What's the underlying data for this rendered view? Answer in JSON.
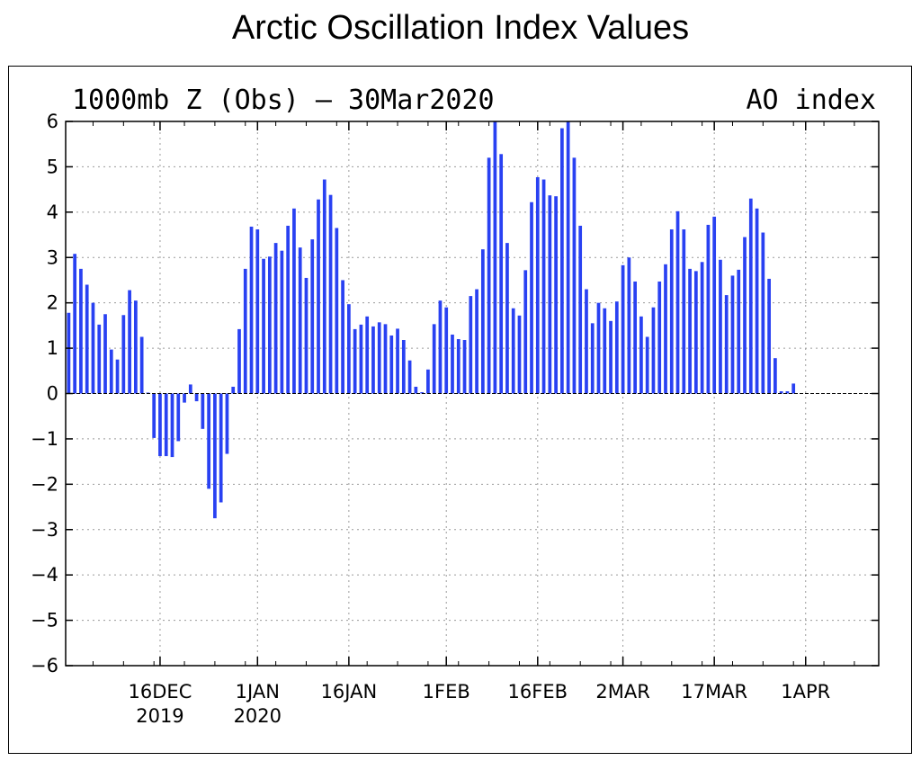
{
  "page_title": "Arctic Oscillation Index Values",
  "chart_data": {
    "type": "bar",
    "title": "1000mb Z (Obs) – 30Mar2020",
    "subtitle_right": "AO index",
    "ylim": [
      -6,
      6
    ],
    "y_ticks": [
      6,
      5,
      4,
      3,
      2,
      1,
      0,
      -1,
      -2,
      -3,
      -4,
      -5,
      -6
    ],
    "y_tick_labels": [
      "6",
      "5",
      "4",
      "3",
      "2",
      "1",
      "0",
      "−1",
      "−2",
      "−3",
      "−4",
      "−5",
      "−6"
    ],
    "x_ticks": [
      {
        "day": 16,
        "line1": "16DEC",
        "line2": "2019"
      },
      {
        "day": 32,
        "line1": "1JAN",
        "line2": "2020"
      },
      {
        "day": 47,
        "line1": "16JAN",
        "line2": ""
      },
      {
        "day": 63,
        "line1": "1FEB",
        "line2": ""
      },
      {
        "day": 78,
        "line1": "16FEB",
        "line2": ""
      },
      {
        "day": 92,
        "line1": "2MAR",
        "line2": ""
      },
      {
        "day": 107,
        "line1": "17MAR",
        "line2": ""
      },
      {
        "day": 122,
        "line1": "1APR",
        "line2": ""
      }
    ],
    "x_axis_unit": "days since 1 Dec 2019",
    "xlim": [
      0.5,
      134
    ],
    "grid": true,
    "bar_color": "#2941f2",
    "values": [
      1.78,
      3.08,
      2.75,
      2.4,
      2.0,
      1.52,
      1.75,
      0.97,
      0.75,
      1.73,
      2.28,
      2.05,
      1.25,
      0.02,
      -0.98,
      -1.38,
      -1.38,
      -1.4,
      -1.05,
      -0.2,
      0.2,
      -0.17,
      -0.78,
      -2.1,
      -2.75,
      -2.4,
      -1.33,
      0.15,
      1.42,
      2.75,
      3.68,
      3.62,
      2.97,
      3.02,
      3.32,
      3.15,
      3.7,
      4.08,
      3.22,
      2.55,
      3.4,
      4.28,
      4.72,
      4.38,
      3.65,
      2.5,
      1.97,
      1.42,
      1.52,
      1.7,
      1.48,
      1.57,
      1.53,
      1.28,
      1.43,
      1.18,
      0.73,
      0.15,
      0.03,
      0.53,
      1.53,
      2.05,
      1.9,
      1.3,
      1.2,
      1.18,
      2.15,
      2.3,
      3.18,
      5.2,
      6.0,
      5.28,
      3.32,
      1.88,
      1.72,
      2.72,
      4.22,
      4.77,
      4.72,
      4.37,
      4.35,
      5.85,
      6.0,
      5.2,
      3.7,
      2.3,
      1.55,
      2.0,
      1.88,
      1.6,
      2.03,
      2.83,
      3.0,
      2.47,
      1.7,
      1.25,
      1.9,
      2.47,
      2.85,
      3.62,
      4.02,
      3.62,
      2.75,
      2.7,
      2.9,
      3.72,
      3.9,
      2.95,
      2.17,
      2.6,
      2.73,
      3.45,
      4.3,
      4.08,
      3.55,
      2.53,
      0.78,
      0.05,
      0.05,
      0.22
    ]
  }
}
